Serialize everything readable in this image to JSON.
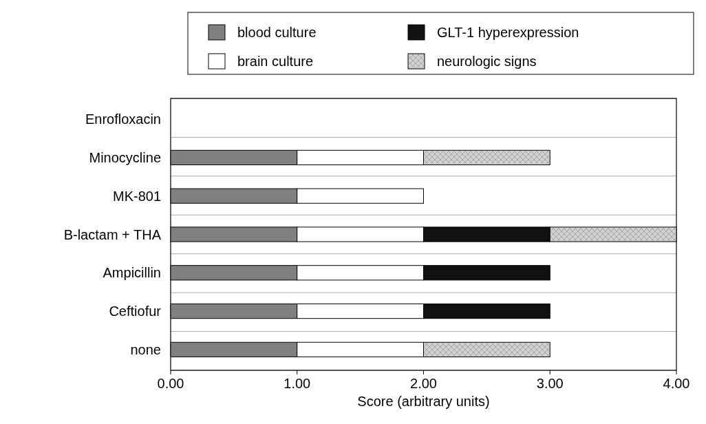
{
  "chart_data": {
    "type": "bar",
    "orientation": "horizontal",
    "stacked": true,
    "xlabel": "Score (arbitrary units)",
    "categories": [
      "Enrofloxacin",
      "Minocycline",
      "MK-801",
      "B-lactam + THA",
      "Ampicillin",
      "Ceftiofur",
      "none"
    ],
    "series": [
      {
        "name": "blood culture",
        "color": "#808080",
        "values": [
          0,
          1,
          1,
          1,
          1,
          1,
          1
        ]
      },
      {
        "name": "brain culture",
        "color": "#ffffff",
        "values": [
          0,
          1,
          1,
          1,
          1,
          1,
          1
        ]
      },
      {
        "name": "GLT-1 hyperexpression",
        "color": "#111111",
        "values": [
          0,
          0,
          0,
          1,
          1,
          1,
          0
        ]
      },
      {
        "name": "neurologic signs",
        "color": "#d0d0d0",
        "values": [
          0,
          1,
          0,
          1,
          0,
          0,
          1
        ]
      }
    ],
    "xlim": [
      0,
      4
    ],
    "xticks": [
      {
        "value": 0,
        "label": "0.00"
      },
      {
        "value": 1,
        "label": "1.00"
      },
      {
        "value": 2,
        "label": "2.00"
      },
      {
        "value": 3,
        "label": "3.00"
      },
      {
        "value": 4,
        "label": "4.00"
      }
    ],
    "grid": "y",
    "legend": "top"
  }
}
